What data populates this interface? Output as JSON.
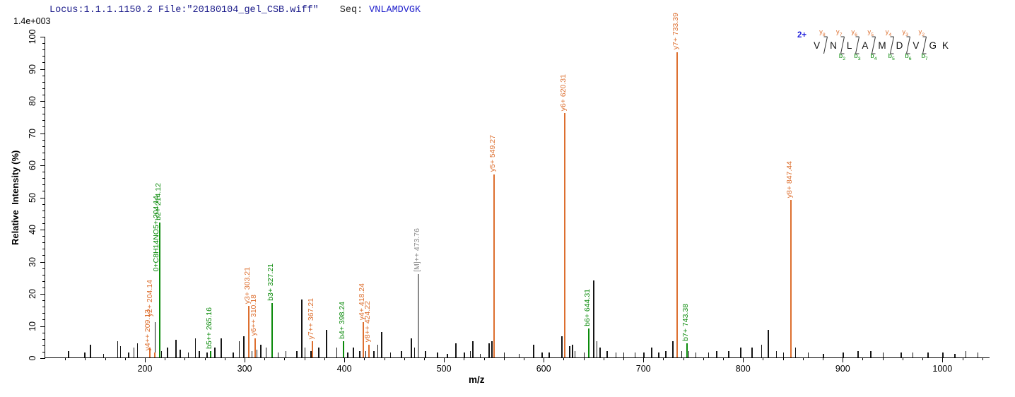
{
  "header": {
    "locus_file": "Locus:1.1.1.1150.2 File:\"20180104_gel_CSB.wiff\"",
    "seq_label": "Seq:",
    "seq_value": "VNLAMDVGK",
    "max_intensity": "1.4e+003"
  },
  "peptide_diagram": {
    "charge": "2+",
    "residues": [
      "V",
      "N",
      "L",
      "A",
      "M",
      "D",
      "V",
      "G",
      "K"
    ],
    "gaps": [
      {
        "y": "y8",
        "b": null
      },
      {
        "y": "y7",
        "b": "b2"
      },
      {
        "y": "y6",
        "b": "b3"
      },
      {
        "y": "y5",
        "b": "b4"
      },
      {
        "y": "y4",
        "b": "b5"
      },
      {
        "y": "y3",
        "b": "b6"
      },
      {
        "y": "y2",
        "b": "b7"
      },
      null
    ]
  },
  "colors": {
    "y_ion": "#dd6f2f",
    "b_ion": "#0a8a0a",
    "precursor": "#8a8a8a",
    "noise_peak": "#151515",
    "header_navy": "#191989",
    "seq_blue": "#2222cc",
    "charge_blue": "#2222dd"
  },
  "chart_data": {
    "type": "bar",
    "title": "Locus:1.1.1.1150.2 File:\"20180104_gel_CSB.wiff\" Seq: VNLAMDVGK",
    "xlabel": "m/z",
    "ylabel": "Relative  Intensity (%)",
    "y_axis_scale_note": "1.4e+003",
    "xlim": [
      100,
      1048
    ],
    "ylim": [
      0,
      100
    ],
    "x_major_ticks": [
      200,
      300,
      400,
      500,
      600,
      700,
      800,
      900,
      1000
    ],
    "x_minor_tick_step": 20,
    "y_major_ticks": [
      0,
      10,
      20,
      30,
      40,
      50,
      60,
      70,
      80,
      90,
      100
    ],
    "y_minor_tick_step": 2,
    "grid": false,
    "legend": "none",
    "annotated_peaks": [
      {
        "mz": 204.14,
        "intensity": 3,
        "label": "y2+ 204.14",
        "ion": "y",
        "label_offset_pct": 9,
        "label_dx": 2
      },
      {
        "mz": 204.14,
        "intensity": 3,
        "label": "0+C8H14NO5+ 204.14",
        "ion": "b",
        "label_offset_pct": 23,
        "label_dx": 11,
        "hide_line": true
      },
      {
        "mz": 209.13,
        "intensity": 1.5,
        "label": "y4++ 209.13",
        "ion": "y",
        "label_offset_pct": 0,
        "label_dx": -8
      },
      {
        "mz": 214.12,
        "intensity": 42,
        "label": "b2+ 214.12",
        "ion": "b"
      },
      {
        "mz": 265.16,
        "intensity": 2,
        "label": "b5++ 265.16",
        "ion": "b"
      },
      {
        "mz": 303.21,
        "intensity": 16,
        "label": "y3+ 303.21",
        "ion": "y"
      },
      {
        "mz": 310.18,
        "intensity": 6,
        "label": "y6++ 310.18",
        "ion": "y"
      },
      {
        "mz": 327.21,
        "intensity": 17,
        "label": "b3+ 327.21",
        "ion": "b"
      },
      {
        "mz": 367.21,
        "intensity": 5,
        "label": "y7++ 367.21",
        "ion": "y"
      },
      {
        "mz": 398.24,
        "intensity": 5,
        "label": "b4+ 398.24",
        "ion": "b"
      },
      {
        "mz": 418.24,
        "intensity": 11,
        "label": "y4+ 418.24",
        "ion": "y"
      },
      {
        "mz": 424.22,
        "intensity": 4,
        "label": "y8++ 424.22",
        "ion": "y"
      },
      {
        "mz": 473.76,
        "intensity": 26,
        "label": "[M]++ 473.76",
        "ion": "M"
      },
      {
        "mz": 549.27,
        "intensity": 57,
        "label": "y5+ 549.27",
        "ion": "y"
      },
      {
        "mz": 620.31,
        "intensity": 76,
        "label": "y6+ 620.31",
        "ion": "y"
      },
      {
        "mz": 644.31,
        "intensity": 9,
        "label": "b6+ 644.31",
        "ion": "b"
      },
      {
        "mz": 733.39,
        "intensity": 95,
        "label": "y7+ 733.39",
        "ion": "y"
      },
      {
        "mz": 743.38,
        "intensity": 4.5,
        "label": "b7+ 743.38",
        "ion": "b"
      },
      {
        "mz": 847.44,
        "intensity": 49,
        "label": "y8+ 847.44",
        "ion": "y"
      }
    ],
    "noise_peaks": [
      [
        123,
        2
      ],
      [
        139,
        1.5
      ],
      [
        145,
        4
      ],
      [
        158,
        1
      ],
      [
        172,
        5
      ],
      [
        175,
        3.5
      ],
      [
        183,
        1.5
      ],
      [
        188.5,
        3
      ],
      [
        192,
        4.5
      ],
      [
        209.6,
        11
      ],
      [
        216,
        2
      ],
      [
        222,
        3
      ],
      [
        230.5,
        5.5
      ],
      [
        235,
        2.5
      ],
      [
        243,
        1.5
      ],
      [
        250,
        6
      ],
      [
        254,
        2
      ],
      [
        262,
        1.5
      ],
      [
        269.5,
        3
      ],
      [
        276,
        6
      ],
      [
        288,
        1.5
      ],
      [
        294,
        5
      ],
      [
        298.6,
        6.5
      ],
      [
        307,
        2
      ],
      [
        312,
        2.5
      ],
      [
        315.6,
        4
      ],
      [
        321,
        3
      ],
      [
        333,
        1.5
      ],
      [
        341,
        2
      ],
      [
        352,
        2
      ],
      [
        356.7,
        18
      ],
      [
        360,
        3
      ],
      [
        366,
        2
      ],
      [
        374,
        3
      ],
      [
        381.6,
        8.5
      ],
      [
        392,
        3
      ],
      [
        403,
        1.5
      ],
      [
        408.5,
        3
      ],
      [
        415,
        2
      ],
      [
        421,
        2
      ],
      [
        429,
        2
      ],
      [
        433,
        4
      ],
      [
        437,
        8
      ],
      [
        446,
        1.5
      ],
      [
        457,
        2
      ],
      [
        466.7,
        6
      ],
      [
        470,
        3
      ],
      [
        481,
        2
      ],
      [
        493,
        1.5
      ],
      [
        503,
        1
      ],
      [
        511.3,
        4.5
      ],
      [
        520,
        1.5
      ],
      [
        526,
        2
      ],
      [
        528.4,
        5
      ],
      [
        536,
        1
      ],
      [
        544.7,
        4.5
      ],
      [
        547.5,
        5
      ],
      [
        560,
        1.5
      ],
      [
        575,
        1
      ],
      [
        589.4,
        4
      ],
      [
        598,
        1.5
      ],
      [
        605,
        1.5
      ],
      [
        617.7,
        6.5
      ],
      [
        625.5,
        3.5
      ],
      [
        628.4,
        4
      ],
      [
        631,
        2
      ],
      [
        640,
        1.5
      ],
      [
        649.7,
        24
      ],
      [
        653,
        5
      ],
      [
        656,
        3
      ],
      [
        663,
        2
      ],
      [
        672,
        1.5
      ],
      [
        680,
        1.5
      ],
      [
        691,
        1.5
      ],
      [
        700,
        1.5
      ],
      [
        708,
        3
      ],
      [
        715,
        1.5
      ],
      [
        722,
        2
      ],
      [
        729,
        5
      ],
      [
        738,
        2
      ],
      [
        745,
        2
      ],
      [
        752,
        1.5
      ],
      [
        765,
        1.5
      ],
      [
        773,
        2
      ],
      [
        785,
        2
      ],
      [
        797,
        3
      ],
      [
        808.5,
        3
      ],
      [
        818,
        4
      ],
      [
        824.8,
        8.5
      ],
      [
        833,
        2
      ],
      [
        840,
        1.5
      ],
      [
        852,
        3
      ],
      [
        865,
        1.5
      ],
      [
        880,
        1
      ],
      [
        900,
        1.5
      ],
      [
        915,
        2
      ],
      [
        927.6,
        2
      ],
      [
        940,
        1.5
      ],
      [
        958,
        1.5
      ],
      [
        970,
        1.5
      ],
      [
        985,
        1.5
      ],
      [
        1000,
        1.5
      ],
      [
        1012,
        1
      ],
      [
        1023,
        2
      ],
      [
        1035,
        1.5
      ]
    ]
  }
}
